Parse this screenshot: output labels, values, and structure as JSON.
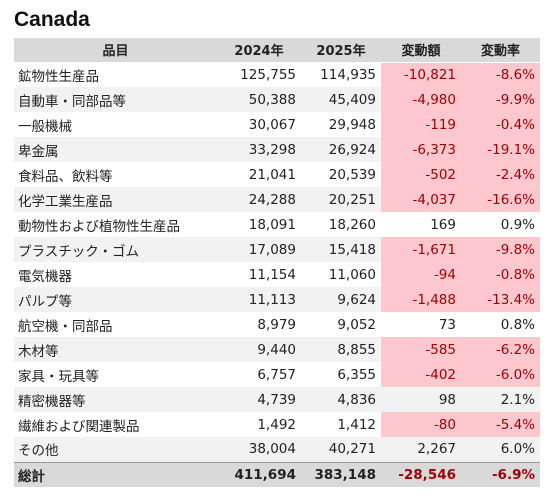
{
  "title": "Canada",
  "headers": {
    "item": "品目",
    "y2024": "2024年",
    "y2025": "2025年",
    "change": "変動額",
    "rate": "変動率"
  },
  "rows": [
    {
      "item": "鉱物性生産品",
      "y2024": "125,755",
      "y2025": "114,935",
      "change": "-10,821",
      "rate": "-8.6%",
      "decrease": true
    },
    {
      "item": "自動車・同部品等",
      "y2024": "50,388",
      "y2025": "45,409",
      "change": "-4,980",
      "rate": "-9.9%",
      "decrease": true
    },
    {
      "item": "一般機械",
      "y2024": "30,067",
      "y2025": "29,948",
      "change": "-119",
      "rate": "-0.4%",
      "decrease": true
    },
    {
      "item": "卑金属",
      "y2024": "33,298",
      "y2025": "26,924",
      "change": "-6,373",
      "rate": "-19.1%",
      "decrease": true
    },
    {
      "item": "食料品、飲料等",
      "y2024": "21,041",
      "y2025": "20,539",
      "change": "-502",
      "rate": "-2.4%",
      "decrease": true
    },
    {
      "item": "化学工業生産品",
      "y2024": "24,288",
      "y2025": "20,251",
      "change": "-4,037",
      "rate": "-16.6%",
      "decrease": true
    },
    {
      "item": "動物性および植物性生産品",
      "y2024": "18,091",
      "y2025": "18,260",
      "change": "169",
      "rate": "0.9%",
      "decrease": false
    },
    {
      "item": "プラスチック・ゴム",
      "y2024": "17,089",
      "y2025": "15,418",
      "change": "-1,671",
      "rate": "-9.8%",
      "decrease": true
    },
    {
      "item": "電気機器",
      "y2024": "11,154",
      "y2025": "11,060",
      "change": "-94",
      "rate": "-0.8%",
      "decrease": true
    },
    {
      "item": "パルプ等",
      "y2024": "11,113",
      "y2025": "9,624",
      "change": "-1,488",
      "rate": "-13.4%",
      "decrease": true
    },
    {
      "item": "航空機・同部品",
      "y2024": "8,979",
      "y2025": "9,052",
      "change": "73",
      "rate": "0.8%",
      "decrease": false
    },
    {
      "item": "木材等",
      "y2024": "9,440",
      "y2025": "8,855",
      "change": "-585",
      "rate": "-6.2%",
      "decrease": true
    },
    {
      "item": "家具・玩具等",
      "y2024": "6,757",
      "y2025": "6,355",
      "change": "-402",
      "rate": "-6.0%",
      "decrease": true
    },
    {
      "item": "精密機器等",
      "y2024": "4,739",
      "y2025": "4,836",
      "change": "98",
      "rate": "2.1%",
      "decrease": false
    },
    {
      "item": "繊維および関連製品",
      "y2024": "1,492",
      "y2025": "1,412",
      "change": "-80",
      "rate": "-5.4%",
      "decrease": true
    },
    {
      "item": "その他",
      "y2024": "38,004",
      "y2025": "40,271",
      "change": "2,267",
      "rate": "6.0%",
      "decrease": false
    }
  ],
  "total": {
    "item": "総計",
    "y2024": "411,694",
    "y2025": "383,148",
    "change": "-28,546",
    "rate": "-6.9%",
    "decrease": true
  },
  "colors": {
    "header_bg": "#d9d9d9",
    "stripe_bg": "#f2f2f2",
    "negative_bg": "#ffc7ce",
    "negative_text": "#9c0006"
  }
}
